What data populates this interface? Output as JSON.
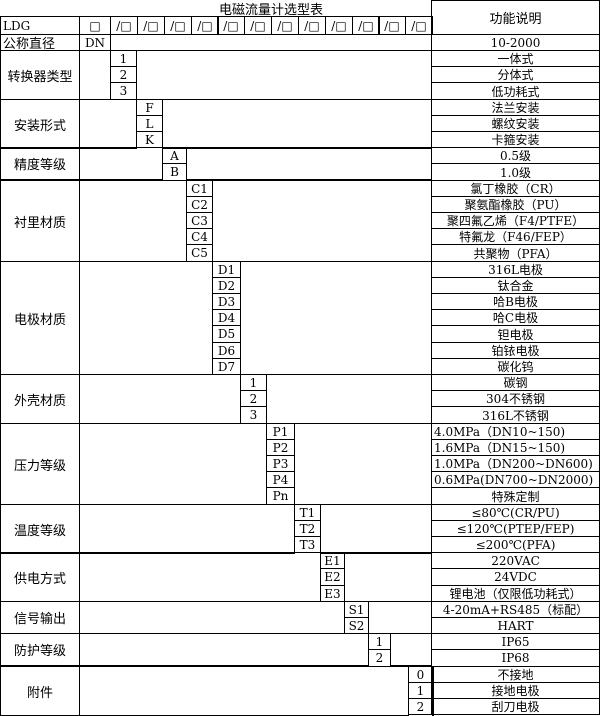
{
  "title": "电磁流量计选型表",
  "function_header": "功能说明",
  "model_prefix": "LDG",
  "header_first_box": "□",
  "header_box": "/□",
  "header_box_count": 12,
  "nominal_diameter": {
    "label": "公称直径",
    "code": "DN",
    "description": "10-2000"
  },
  "groups": [
    {
      "label": "转换器类型",
      "options": [
        {
          "code": "1",
          "desc": "一体式"
        },
        {
          "code": "2",
          "desc": "分体式"
        },
        {
          "code": "3",
          "desc": "低功耗式"
        }
      ]
    },
    {
      "label": "安装形式",
      "options": [
        {
          "code": "F",
          "desc": "法兰安装"
        },
        {
          "code": "L",
          "desc": "螺纹安装"
        },
        {
          "code": "K",
          "desc": "卡箍安装"
        }
      ]
    },
    {
      "label": "精度等级",
      "options": [
        {
          "code": "A",
          "desc": "0.5级"
        },
        {
          "code": "B",
          "desc": "1.0级"
        }
      ]
    },
    {
      "label": "衬里材质",
      "options": [
        {
          "code": "C1",
          "desc": "氯丁橡胶（CR）"
        },
        {
          "code": "C2",
          "desc": "聚氨酯橡胶（PU）"
        },
        {
          "code": "C3",
          "desc": "聚四氟乙烯（F4/PTFE）"
        },
        {
          "code": "C4",
          "desc": "特氟龙（F46/FEP）"
        },
        {
          "code": "C5",
          "desc": "共聚物（PFA）"
        }
      ]
    },
    {
      "label": "电极材质",
      "options": [
        {
          "code": "D1",
          "desc": "316L电极"
        },
        {
          "code": "D2",
          "desc": "钛合金"
        },
        {
          "code": "D3",
          "desc": "哈B电极"
        },
        {
          "code": "D4",
          "desc": "哈C电极"
        },
        {
          "code": "D5",
          "desc": "钽电极"
        },
        {
          "code": "D6",
          "desc": "铂铱电极"
        },
        {
          "code": "D7",
          "desc": "碳化钨"
        }
      ]
    },
    {
      "label": "外壳材质",
      "options": [
        {
          "code": "1",
          "desc": "碳钢"
        },
        {
          "code": "2",
          "desc": "304不锈钢"
        },
        {
          "code": "3",
          "desc": "316L不锈钢"
        }
      ]
    },
    {
      "label": "压力等级",
      "options": [
        {
          "code": "P1",
          "desc": "4.0MPa（DN10~150)",
          "left": true
        },
        {
          "code": "P2",
          "desc": "1.6MPa（DN15~150)",
          "left": true
        },
        {
          "code": "P3",
          "desc": "1.0MPa（DN200~DN600)",
          "left": true
        },
        {
          "code": "P4",
          "desc": "0.6MPa(DN700~DN2000)",
          "left": true
        },
        {
          "code": "Pn",
          "desc": "特殊定制"
        }
      ]
    },
    {
      "label": "温度等级",
      "options": [
        {
          "code": "T1",
          "desc": "≤80℃(CR/PU)"
        },
        {
          "code": "T2",
          "desc": "≤120℃(PTEP/FEP)"
        },
        {
          "code": "T3",
          "desc": "≤200℃(PFA)"
        }
      ]
    },
    {
      "label": "供电方式",
      "options": [
        {
          "code": "E1",
          "desc": "220VAC"
        },
        {
          "code": "E2",
          "desc": "24VDC"
        },
        {
          "code": "E3",
          "desc": "锂电池（仅限低功耗式）"
        }
      ]
    },
    {
      "label": "信号输出",
      "options": [
        {
          "code": "S1",
          "desc": "4-20mA+RS485（标配）"
        },
        {
          "code": "S2",
          "desc": "HART"
        }
      ]
    },
    {
      "label": "防护等级",
      "options": [
        {
          "code": "1",
          "desc": "IP65"
        },
        {
          "code": "2",
          "desc": "IP68"
        }
      ]
    },
    {
      "label": "附件",
      "options": [
        {
          "code": "0",
          "desc": "不接地"
        },
        {
          "code": "1",
          "desc": "接地电极"
        },
        {
          "code": "2",
          "desc": "刮刀电极"
        }
      ]
    }
  ]
}
